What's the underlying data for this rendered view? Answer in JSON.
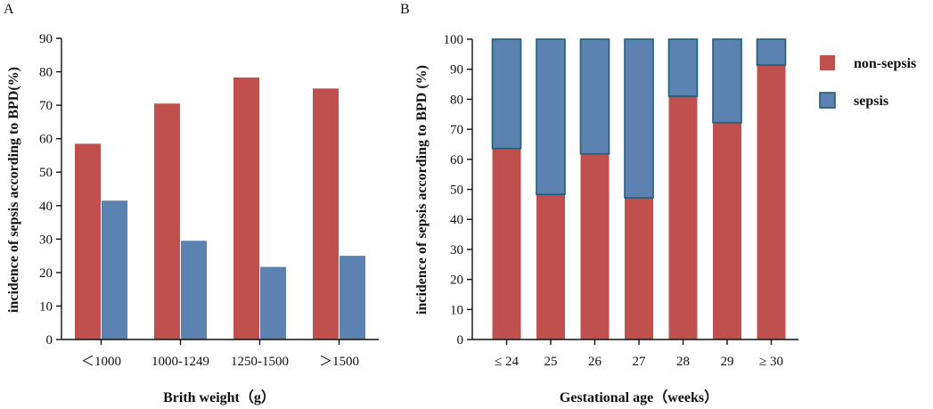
{
  "colors": {
    "non_sepsis": "#c0504d",
    "sepsis": "#5b82b0",
    "stack_outline": "#1f5f7a",
    "axis": "#111111"
  },
  "chart_data": [
    {
      "panel_label": "A",
      "type": "bar",
      "title": "",
      "xlabel": "Brith weight（g）",
      "ylabel": "incidence of sepsis according to BPD(%)",
      "ylim": [
        0,
        90
      ],
      "yticks": [
        "0",
        "10",
        "20",
        "30",
        "40",
        "50",
        "60",
        "70",
        "80",
        "90"
      ],
      "categories": [
        "＜1000",
        "1000-1249",
        "1250-1500",
        "＞1500"
      ],
      "series": [
        {
          "name": "non-sepsis",
          "values": [
            58.5,
            70.5,
            78.3,
            75.0
          ]
        },
        {
          "name": "sepsis",
          "values": [
            41.5,
            29.5,
            21.7,
            25.0
          ]
        }
      ]
    },
    {
      "panel_label": "B",
      "type": "bar",
      "stacked": true,
      "title": "",
      "xlabel": "Gestational age（weeks）",
      "ylabel": "incidence of sepsis according to BPD (%)",
      "ylim": [
        0,
        100
      ],
      "yticks": [
        "0",
        "10",
        "20",
        "30",
        "40",
        "50",
        "60",
        "70",
        "80",
        "90",
        "100"
      ],
      "categories": [
        "≤ 24",
        "25",
        "26",
        "27",
        "28",
        "29",
        "≥ 30"
      ],
      "series": [
        {
          "name": "non-sepsis",
          "values": [
            63.6,
            48.3,
            61.8,
            47.2,
            81.0,
            72.2,
            91.4
          ]
        },
        {
          "name": "sepsis",
          "values": [
            36.4,
            51.7,
            38.2,
            52.8,
            19.0,
            27.8,
            8.6
          ]
        }
      ],
      "legend": {
        "position": "right",
        "entries": [
          "non-sepsis",
          "sepsis"
        ]
      }
    }
  ]
}
